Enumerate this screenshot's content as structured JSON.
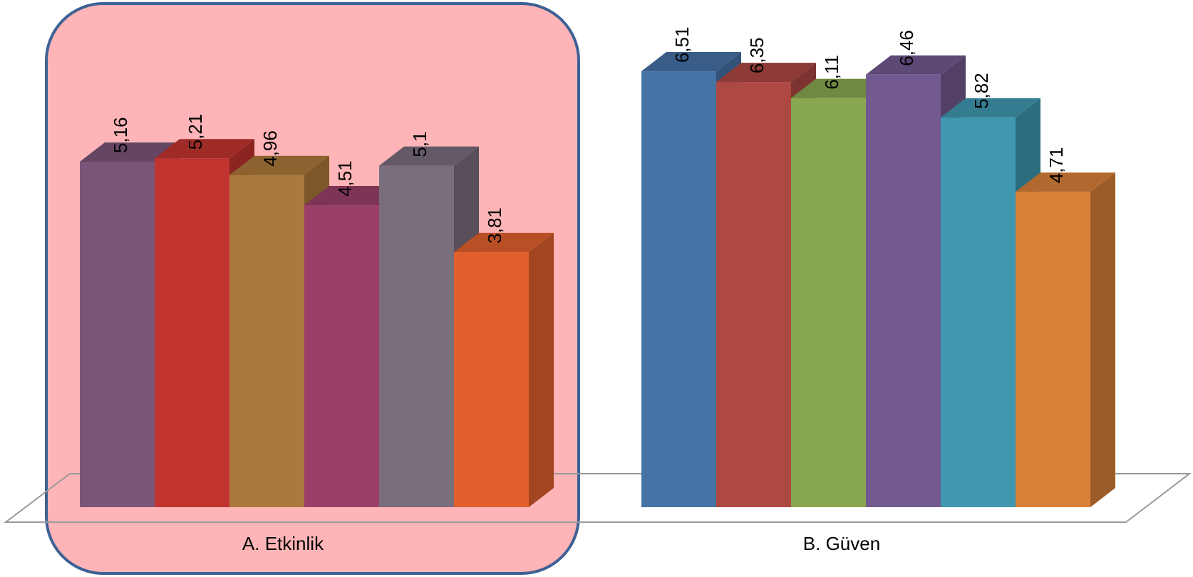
{
  "chart_data": {
    "type": "bar",
    "style": "3d-clustered-column",
    "categories": [
      "A. Etkinlik",
      "B. Güven"
    ],
    "series": [
      {
        "values": [
          5.16,
          6.51
        ],
        "colors": [
          "#7b5577",
          "#4672a6"
        ]
      },
      {
        "values": [
          5.21,
          6.35
        ],
        "colors": [
          "#c2342f",
          "#ad4843"
        ]
      },
      {
        "values": [
          4.96,
          6.11
        ],
        "colors": [
          "#ab793b",
          "#89a74f"
        ]
      },
      {
        "values": [
          4.51,
          6.46
        ],
        "colors": [
          "#9a4068",
          "#72598f"
        ]
      },
      {
        "values": [
          5.1,
          5.82
        ],
        "colors": [
          "#7a6e7d",
          "#4097b0"
        ]
      },
      {
        "values": [
          3.81,
          4.71
        ],
        "colors": [
          "#e2602c",
          "#d98039"
        ]
      }
    ],
    "value_labels": [
      [
        "5,16",
        "6,51"
      ],
      [
        "5,21",
        "6,35"
      ],
      [
        "4,96",
        "6,11"
      ],
      [
        "4,51",
        "6,46"
      ],
      [
        "5,1",
        "5,82"
      ],
      [
        "3,81",
        "4,71"
      ]
    ],
    "highlight": {
      "category": "A. Etkinlik",
      "fill": "#ffb5b7",
      "border": "#3d6195"
    },
    "grid": false,
    "legend": "none"
  }
}
